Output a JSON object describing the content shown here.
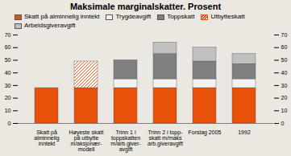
{
  "chart_data": {
    "type": "bar",
    "stacked": true,
    "title": "Maksimale marginalskatter. Prosent",
    "categories": [
      "Skatt på\nalminnelig\ninntekt",
      "Høyeste skatt\npå utbytte\nm/aksjonær-\nmodell",
      "Trinn 1 i\ntoppskatten\nm/arb.giver-\navgift",
      "Trinn 2 i topp-\nskatt m/maks\narb.giveravgift",
      "Forslag 2005",
      "1992"
    ],
    "series": [
      {
        "name": "Skatt på alminnelig inntekt",
        "color": "#E8510A",
        "values": [
          28,
          28,
          28,
          28,
          28,
          28
        ]
      },
      {
        "name": "Trygdeavgift",
        "color": "#F2F2F2",
        "values": [
          0,
          0,
          7,
          7,
          7,
          7
        ]
      },
      {
        "name": "Toppskatt",
        "color": "#7F7F7F",
        "values": [
          0,
          0,
          15,
          20,
          14,
          12
        ]
      },
      {
        "name": "Utbytteskatt",
        "color": "#E8510A",
        "values": [
          0,
          21,
          0,
          0,
          0,
          0
        ]
      },
      {
        "name": "Arbeidsgiveravgift",
        "color": "#C0C0C0",
        "values": [
          0,
          0,
          0,
          9,
          11,
          8
        ]
      }
    ],
    "ylim": [
      0,
      70
    ],
    "yticks": [
      0,
      10,
      20,
      30,
      40,
      50,
      60,
      70
    ],
    "legend": "upper left"
  }
}
